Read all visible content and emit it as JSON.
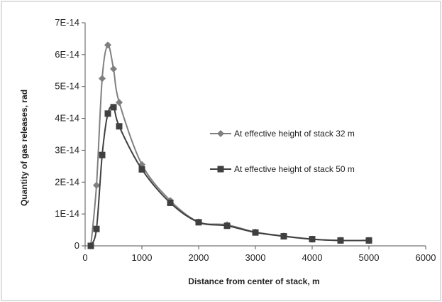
{
  "chart_data": {
    "type": "line",
    "title": "",
    "xlabel": "Distance from center of stack, m",
    "ylabel": "Quantity of gas releases, rad",
    "xlim": [
      0,
      6000
    ],
    "ylim": [
      0,
      7e-14
    ],
    "x_ticks": [
      {
        "value": 0,
        "label": "0"
      },
      {
        "value": 1000,
        "label": "1000"
      },
      {
        "value": 2000,
        "label": "2000"
      },
      {
        "value": 3000,
        "label": "3000"
      },
      {
        "value": 4000,
        "label": "4000"
      },
      {
        "value": 5000,
        "label": "5000"
      },
      {
        "value": 6000,
        "label": "6000"
      }
    ],
    "y_ticks": [
      {
        "value": 0,
        "label": "0"
      },
      {
        "value": 1e-14,
        "label": "1E-14"
      },
      {
        "value": 2e-14,
        "label": "2E-14"
      },
      {
        "value": 3e-14,
        "label": "3E-14"
      },
      {
        "value": 4e-14,
        "label": "4E-14"
      },
      {
        "value": 5e-14,
        "label": "5E-14"
      },
      {
        "value": 6e-14,
        "label": "6E-14"
      },
      {
        "value": 7e-14,
        "label": "7E-14"
      }
    ],
    "grid": false,
    "legend_position": "right",
    "series": [
      {
        "name": "At effective height of stack 32 m",
        "marker": "diamond",
        "color": "#7f7f7f",
        "x": [
          100,
          200,
          300,
          400,
          500,
          600,
          1000,
          1500,
          2000,
          2500,
          3000,
          3500,
          4000,
          4500,
          5000
        ],
        "y": [
          0,
          1.9e-14,
          5.25e-14,
          6.3e-14,
          5.55e-14,
          4.5e-14,
          2.55e-14,
          1.42e-14,
          7.5e-15,
          6.6e-15,
          4.3e-15,
          3.1e-15,
          2.1e-15,
          1.7e-15,
          1.7e-15
        ]
      },
      {
        "name": "At effective height of stack 50 m",
        "marker": "square",
        "color": "#404040",
        "x": [
          100,
          200,
          300,
          400,
          500,
          600,
          1000,
          1500,
          2000,
          2500,
          3000,
          3500,
          4000,
          4500,
          5000
        ],
        "y": [
          0,
          5.3e-15,
          2.85e-14,
          4.15e-14,
          4.35e-14,
          3.75e-14,
          2.4e-14,
          1.35e-14,
          7.4e-15,
          6.3e-15,
          4.2e-15,
          3e-15,
          2.1e-15,
          1.7e-15,
          1.7e-15
        ]
      }
    ]
  }
}
